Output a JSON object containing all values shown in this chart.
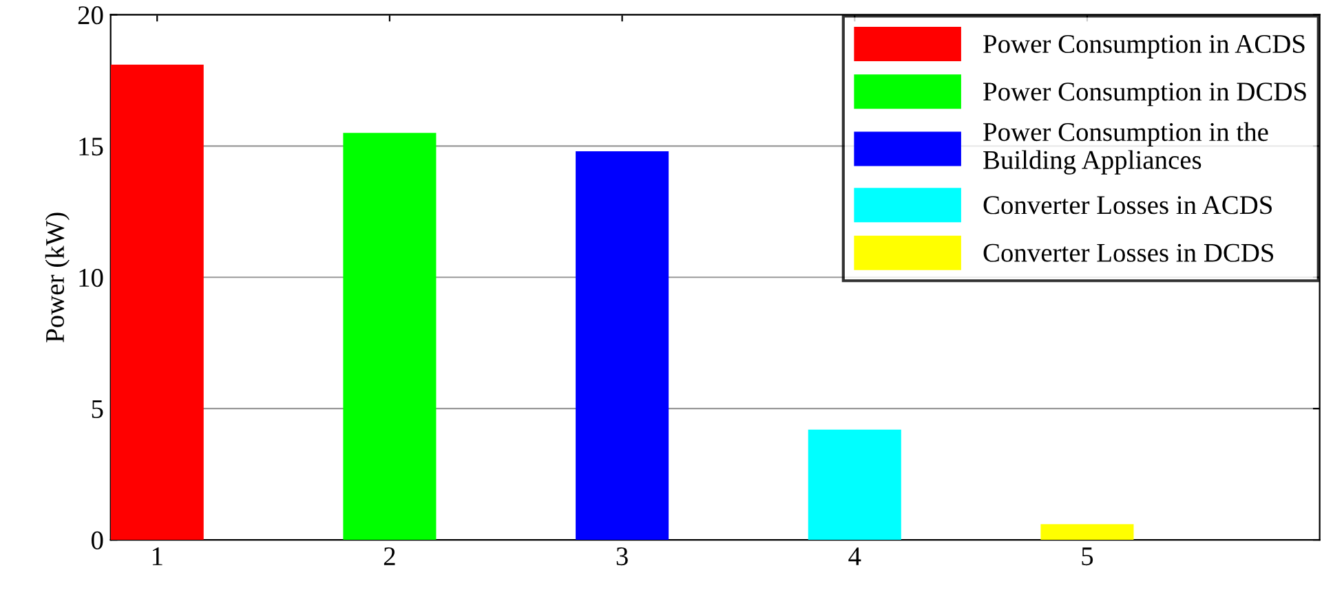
{
  "chart_data": {
    "type": "bar",
    "ylabel": "Power (kW)",
    "series": [
      {
        "name": "Power Consumption in ACDS",
        "color": "#ff0000",
        "x": [
          1
        ],
        "values": [
          18.1
        ]
      },
      {
        "name": "Power Consumption in DCDS",
        "color": "#00ff00",
        "x": [
          2
        ],
        "values": [
          15.5
        ]
      },
      {
        "name": "Power Consumption in the\nBuilding Appliances",
        "color": "#0000ff",
        "x": [
          3
        ],
        "values": [
          14.8
        ]
      },
      {
        "name": "Converter Losses in ACDS",
        "color": "#00ffff",
        "x": [
          4
        ],
        "values": [
          4.2
        ]
      },
      {
        "name": "Converter Losses in DCDS",
        "color": "#ffff00",
        "x": [
          5
        ],
        "values": [
          0.6
        ]
      }
    ],
    "xlim": [
      0.8,
      6
    ],
    "xticks": [
      1,
      2,
      3,
      4,
      5
    ],
    "ylim": [
      0,
      20
    ],
    "yticks": [
      0,
      5,
      10,
      15,
      20
    ],
    "grid": "y",
    "legend": "top right"
  }
}
